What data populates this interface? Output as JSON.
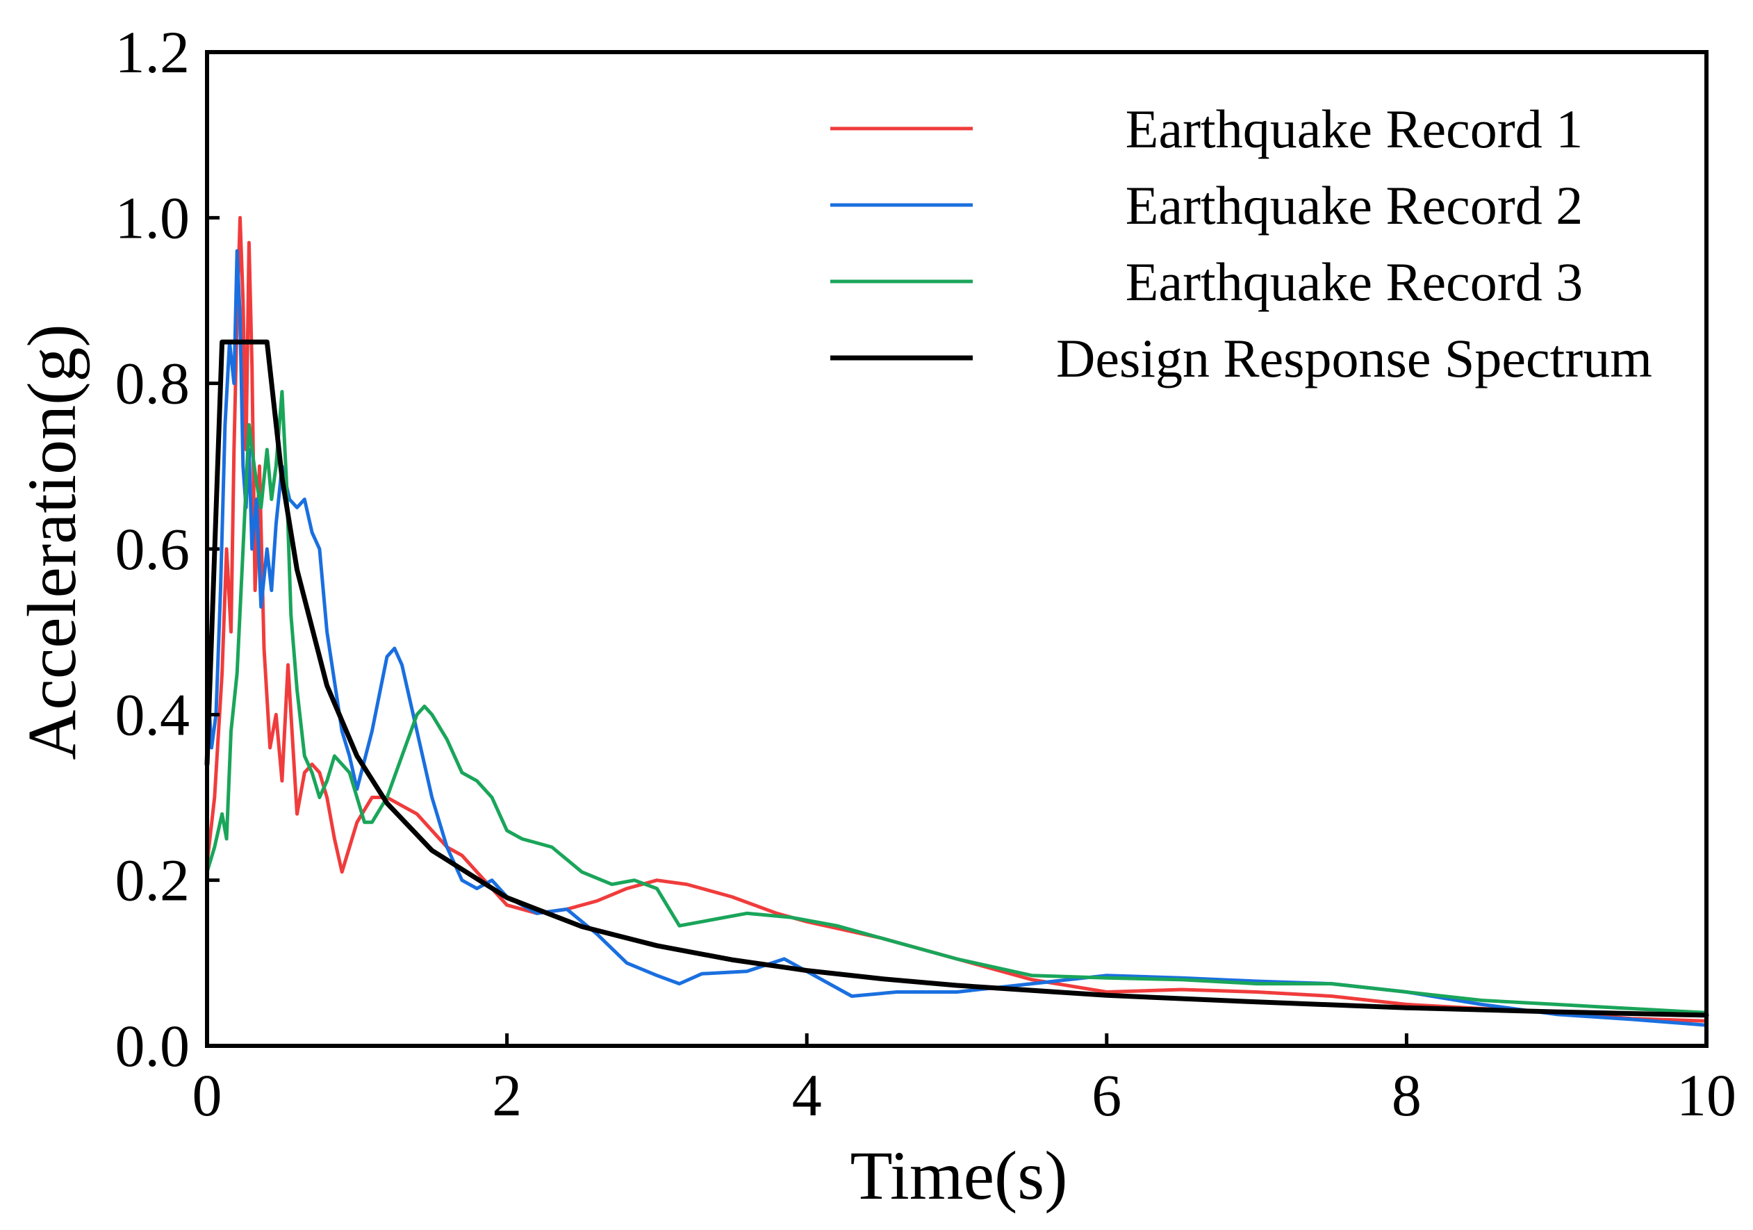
{
  "chart_data": {
    "type": "line",
    "title": "",
    "xlabel": "Time(s)",
    "ylabel": "Acceleration(g)",
    "xlim": [
      0,
      10
    ],
    "ylim": [
      0,
      1.2
    ],
    "xticks": [
      0,
      2,
      4,
      6,
      8,
      10
    ],
    "xtick_labels": [
      "0",
      "2",
      "4",
      "6",
      "8",
      "10"
    ],
    "yticks": [
      0,
      0.2,
      0.4,
      0.6,
      0.8,
      1.0,
      1.2
    ],
    "ytick_labels": [
      "0.0",
      "0.2",
      "0.4",
      "0.6",
      "0.8",
      "1.0",
      "1.2"
    ],
    "grid": false,
    "legend_position": "top-right",
    "series": [
      {
        "name": "Earthquake Record 1",
        "color": "#f03c3c",
        "x": [
          0,
          0.05,
          0.1,
          0.13,
          0.16,
          0.18,
          0.2,
          0.22,
          0.24,
          0.26,
          0.28,
          0.3,
          0.32,
          0.35,
          0.38,
          0.42,
          0.46,
          0.5,
          0.54,
          0.57,
          0.6,
          0.65,
          0.7,
          0.75,
          0.8,
          0.85,
          0.9,
          0.95,
          1.0,
          1.1,
          1.2,
          1.3,
          1.4,
          1.5,
          1.6,
          1.7,
          1.8,
          2.0,
          2.2,
          2.4,
          2.6,
          2.8,
          3.0,
          3.2,
          3.5,
          3.8,
          4.0,
          4.5,
          5.0,
          5.5,
          6.0,
          6.5,
          7.0,
          7.5,
          8.0,
          8.5,
          9.0,
          9.5,
          10.0
        ],
        "values": [
          0.22,
          0.3,
          0.45,
          0.6,
          0.5,
          0.72,
          0.88,
          1.0,
          0.9,
          0.72,
          0.97,
          0.82,
          0.55,
          0.7,
          0.48,
          0.36,
          0.4,
          0.32,
          0.46,
          0.37,
          0.28,
          0.33,
          0.34,
          0.33,
          0.3,
          0.25,
          0.21,
          0.24,
          0.27,
          0.3,
          0.3,
          0.29,
          0.28,
          0.26,
          0.24,
          0.23,
          0.21,
          0.17,
          0.16,
          0.165,
          0.175,
          0.19,
          0.2,
          0.195,
          0.18,
          0.16,
          0.15,
          0.13,
          0.105,
          0.08,
          0.065,
          0.068,
          0.065,
          0.06,
          0.05,
          0.045,
          0.04,
          0.033,
          0.03
        ]
      },
      {
        "name": "Earthquake Record 2",
        "color": "#1a6fdf",
        "x": [
          0,
          0.03,
          0.06,
          0.09,
          0.12,
          0.15,
          0.18,
          0.2,
          0.22,
          0.24,
          0.26,
          0.28,
          0.3,
          0.33,
          0.36,
          0.4,
          0.43,
          0.46,
          0.5,
          0.55,
          0.6,
          0.65,
          0.7,
          0.75,
          0.8,
          0.85,
          0.9,
          0.95,
          1.0,
          1.1,
          1.2,
          1.25,
          1.3,
          1.4,
          1.5,
          1.6,
          1.7,
          1.8,
          1.9,
          2.0,
          2.2,
          2.4,
          2.6,
          2.8,
          3.0,
          3.15,
          3.3,
          3.6,
          3.85,
          4.0,
          4.3,
          4.6,
          5.0,
          5.5,
          6.0,
          6.5,
          7.0,
          7.5,
          8.0,
          8.5,
          9.0,
          9.5,
          10.0
        ],
        "values": [
          0.45,
          0.36,
          0.4,
          0.55,
          0.75,
          0.85,
          0.8,
          0.96,
          0.88,
          0.7,
          0.65,
          0.72,
          0.6,
          0.66,
          0.53,
          0.6,
          0.55,
          0.63,
          0.7,
          0.66,
          0.65,
          0.66,
          0.62,
          0.6,
          0.5,
          0.44,
          0.38,
          0.35,
          0.31,
          0.38,
          0.47,
          0.48,
          0.46,
          0.38,
          0.3,
          0.24,
          0.2,
          0.19,
          0.2,
          0.18,
          0.16,
          0.165,
          0.135,
          0.1,
          0.085,
          0.075,
          0.087,
          0.09,
          0.105,
          0.09,
          0.06,
          0.065,
          0.065,
          0.075,
          0.085,
          0.082,
          0.078,
          0.075,
          0.065,
          0.05,
          0.038,
          0.032,
          0.025
        ]
      },
      {
        "name": "Earthquake Record 3",
        "color": "#1aa55a",
        "x": [
          0,
          0.05,
          0.1,
          0.13,
          0.16,
          0.2,
          0.24,
          0.28,
          0.3,
          0.33,
          0.36,
          0.4,
          0.43,
          0.46,
          0.5,
          0.53,
          0.56,
          0.6,
          0.65,
          0.7,
          0.75,
          0.8,
          0.85,
          0.9,
          0.95,
          1.0,
          1.05,
          1.1,
          1.2,
          1.3,
          1.4,
          1.45,
          1.5,
          1.6,
          1.7,
          1.8,
          1.9,
          2.0,
          2.1,
          2.3,
          2.5,
          2.7,
          2.85,
          3.0,
          3.15,
          3.3,
          3.6,
          3.9,
          4.2,
          4.5,
          5.0,
          5.5,
          6.0,
          6.5,
          7.0,
          7.5,
          8.0,
          8.5,
          9.0,
          9.5,
          10.0
        ],
        "values": [
          0.21,
          0.24,
          0.28,
          0.25,
          0.38,
          0.45,
          0.6,
          0.75,
          0.72,
          0.68,
          0.65,
          0.72,
          0.66,
          0.7,
          0.79,
          0.68,
          0.52,
          0.43,
          0.35,
          0.33,
          0.3,
          0.32,
          0.35,
          0.34,
          0.33,
          0.3,
          0.27,
          0.27,
          0.3,
          0.35,
          0.4,
          0.41,
          0.4,
          0.37,
          0.33,
          0.32,
          0.3,
          0.26,
          0.25,
          0.24,
          0.21,
          0.195,
          0.2,
          0.19,
          0.145,
          0.15,
          0.16,
          0.155,
          0.145,
          0.13,
          0.105,
          0.085,
          0.082,
          0.08,
          0.075,
          0.075,
          0.065,
          0.055,
          0.05,
          0.045,
          0.04
        ]
      },
      {
        "name": "Design Response Spectrum",
        "color": "#000000",
        "x": [
          0,
          0.1,
          0.4,
          0.5,
          0.6,
          0.8,
          1.0,
          1.2,
          1.5,
          2.0,
          2.5,
          3.0,
          3.5,
          4.0,
          4.5,
          5.0,
          6.0,
          7.0,
          8.0,
          9.0,
          10.0
        ],
        "values": [
          0.34,
          0.85,
          0.85,
          0.686,
          0.575,
          0.435,
          0.35,
          0.293,
          0.236,
          0.179,
          0.144,
          0.121,
          0.104,
          0.091,
          0.081,
          0.073,
          0.061,
          0.053,
          0.046,
          0.041,
          0.037
        ]
      }
    ]
  }
}
